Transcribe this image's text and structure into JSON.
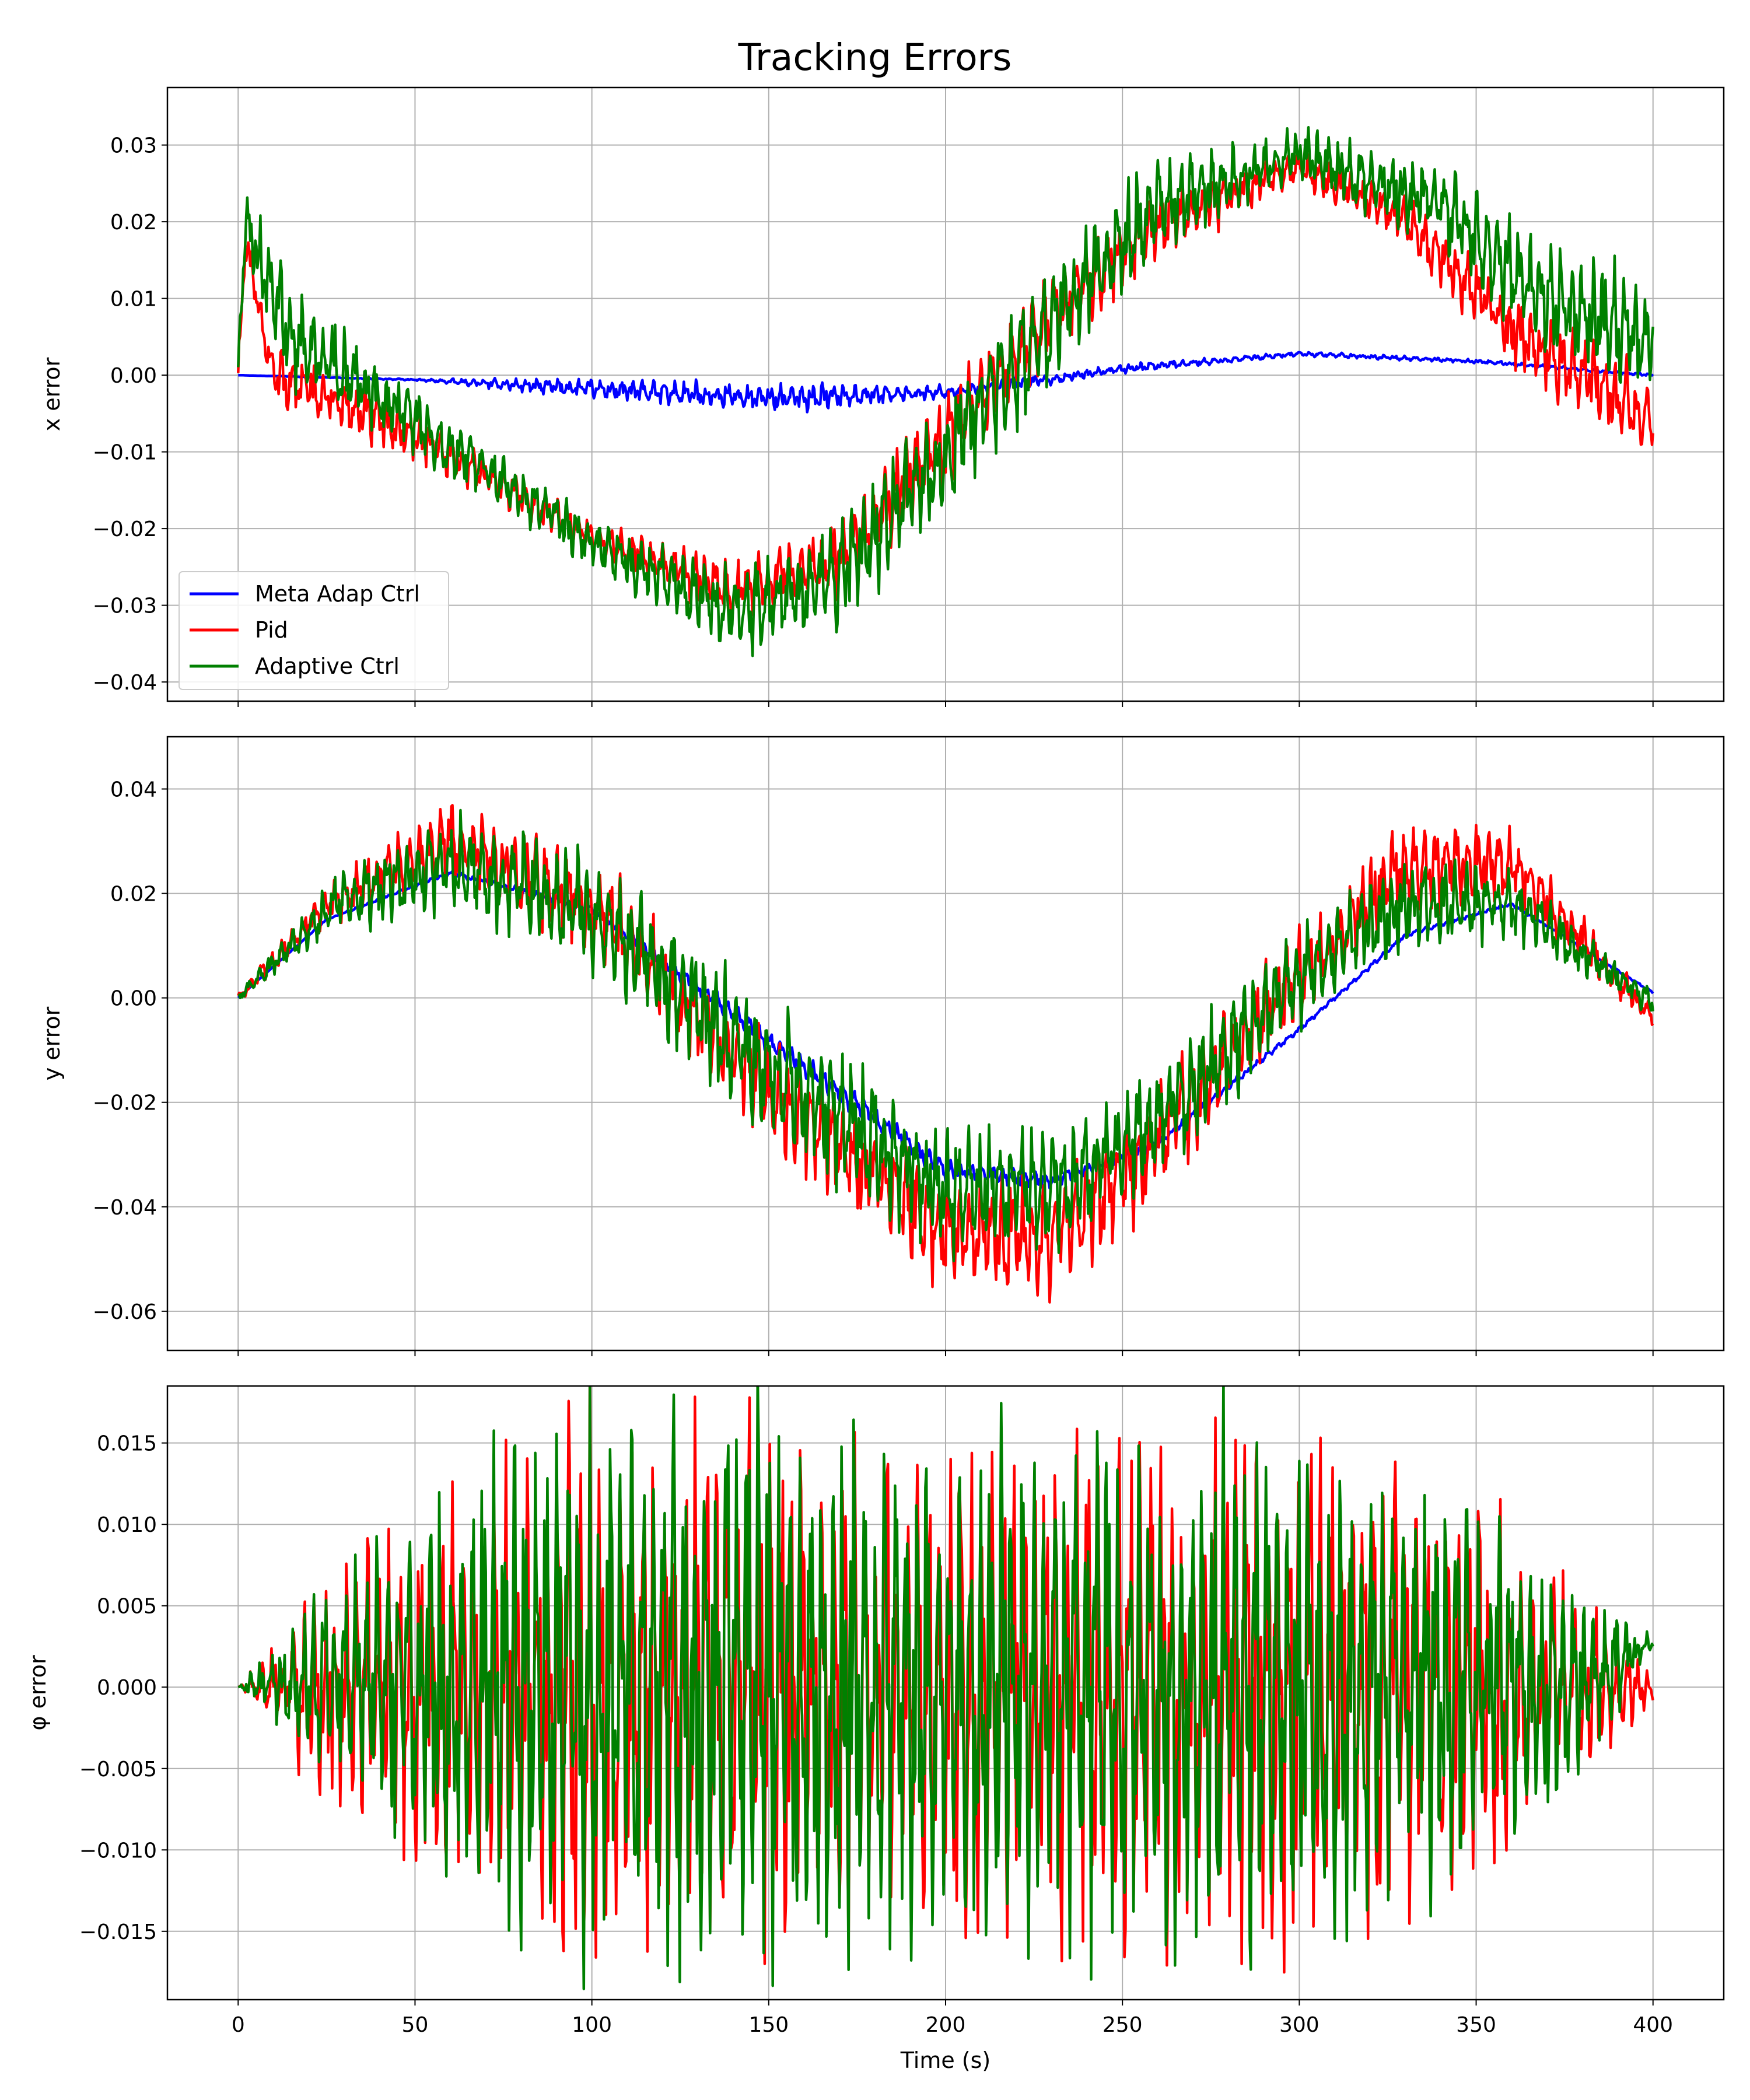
{
  "chart_data": {
    "type": "line",
    "title": "Tracking Errors",
    "xlabel": "Time (s)",
    "xlim": [
      -20,
      420
    ],
    "xticks": [
      0,
      50,
      100,
      150,
      200,
      250,
      300,
      350,
      400
    ],
    "grid": true,
    "legend": {
      "placement": "lower-left",
      "panel": 0,
      "entries": [
        "Meta Adap Ctrl",
        "Pid",
        "Adaptive Ctrl"
      ]
    },
    "colors": {
      "Meta Adap Ctrl": "#0000ff",
      "Pid": "#ff0000",
      "Adaptive Ctrl": "#008000"
    },
    "panels": [
      {
        "ylabel": "x error",
        "ylim": [
          -0.0425,
          0.0375
        ],
        "yticks": [
          -0.04,
          -0.03,
          -0.02,
          -0.01,
          0.0,
          0.01,
          0.02,
          0.03
        ],
        "yticklabels": [
          "−0.04",
          "−0.03",
          "−0.02",
          "−0.01",
          "0.00",
          "0.01",
          "0.02",
          "0.03"
        ],
        "series": [
          {
            "name": "Meta Adap Ctrl",
            "baseline": [
              [
                0,
                0.0
              ],
              [
                50,
                -0.0006
              ],
              [
                100,
                -0.0018
              ],
              [
                150,
                -0.003
              ],
              [
                200,
                -0.0022
              ],
              [
                225,
                -0.0008
              ],
              [
                250,
                0.0008
              ],
              [
                300,
                0.0028
              ],
              [
                350,
                0.0018
              ],
              [
                400,
                0.0
              ]
            ],
            "oscillation": [
              [
                0,
                0
              ],
              [
                50,
                0.0001
              ],
              [
                100,
                0.0012
              ],
              [
                150,
                0.0018
              ],
              [
                200,
                0.0008
              ],
              [
                250,
                0.0006
              ],
              [
                300,
                0.0003
              ],
              [
                400,
                0.0002
              ]
            ]
          },
          {
            "name": "Pid",
            "baseline": [
              [
                0,
                0.0
              ],
              [
                2,
                0.017
              ],
              [
                10,
                0.0
              ],
              [
                50,
                -0.008
              ],
              [
                100,
                -0.021
              ],
              [
                140,
                -0.028
              ],
              [
                170,
                -0.024
              ],
              [
                200,
                -0.008
              ],
              [
                230,
                0.008
              ],
              [
                260,
                0.02
              ],
              [
                300,
                0.027
              ],
              [
                330,
                0.02
              ],
              [
                360,
                0.006
              ],
              [
                400,
                -0.006
              ]
            ],
            "oscillation": [
              [
                0,
                0.002
              ],
              [
                10,
                0.004
              ],
              [
                50,
                0.003
              ],
              [
                100,
                0.002
              ],
              [
                150,
                0.004
              ],
              [
                200,
                0.006
              ],
              [
                250,
                0.005
              ],
              [
                300,
                0.002
              ],
              [
                350,
                0.004
              ],
              [
                400,
                0.006
              ]
            ]
          },
          {
            "name": "Adaptive Ctrl",
            "baseline": [
              [
                0,
                0.0
              ],
              [
                2,
                0.02
              ],
              [
                15,
                0.005
              ],
              [
                50,
                -0.006
              ],
              [
                100,
                -0.022
              ],
              [
                140,
                -0.031
              ],
              [
                170,
                -0.026
              ],
              [
                200,
                -0.01
              ],
              [
                230,
                0.007
              ],
              [
                260,
                0.022
              ],
              [
                300,
                0.029
              ],
              [
                340,
                0.022
              ],
              [
                370,
                0.01
              ],
              [
                400,
                0.004
              ]
            ],
            "oscillation": [
              [
                0,
                0.003
              ],
              [
                10,
                0.007
              ],
              [
                50,
                0.004
              ],
              [
                100,
                0.003
              ],
              [
                150,
                0.006
              ],
              [
                200,
                0.008
              ],
              [
                250,
                0.007
              ],
              [
                300,
                0.003
              ],
              [
                350,
                0.006
              ],
              [
                400,
                0.008
              ]
            ]
          }
        ]
      },
      {
        "ylabel": "y error",
        "ylim": [
          -0.0675,
          0.05
        ],
        "yticks": [
          -0.06,
          -0.04,
          -0.02,
          0.0,
          0.02,
          0.04
        ],
        "yticklabels": [
          "−0.06",
          "−0.04",
          "−0.02",
          "0.00",
          "0.02",
          "0.04"
        ],
        "series": [
          {
            "name": "Meta Adap Ctrl",
            "baseline": [
              [
                0,
                0.0
              ],
              [
                25,
                0.015
              ],
              [
                60,
                0.024
              ],
              [
                100,
                0.017
              ],
              [
                150,
                -0.008
              ],
              [
                200,
                -0.033
              ],
              [
                230,
                -0.035
              ],
              [
                260,
                -0.028
              ],
              [
                300,
                -0.006
              ],
              [
                330,
                0.012
              ],
              [
                360,
                0.018
              ],
              [
                400,
                0.001
              ]
            ],
            "oscillation": [
              [
                0,
                0
              ],
              [
                50,
                0.0003
              ],
              [
                100,
                0.001
              ],
              [
                150,
                0.002
              ],
              [
                200,
                0.002
              ],
              [
                250,
                0.001
              ],
              [
                300,
                0.0005
              ],
              [
                400,
                0.0002
              ]
            ]
          },
          {
            "name": "Pid",
            "baseline": [
              [
                0,
                0.0
              ],
              [
                25,
                0.018
              ],
              [
                60,
                0.03
              ],
              [
                100,
                0.018
              ],
              [
                150,
                -0.018
              ],
              [
                200,
                -0.045
              ],
              [
                230,
                -0.046
              ],
              [
                260,
                -0.028
              ],
              [
                300,
                0.005
              ],
              [
                330,
                0.025
              ],
              [
                360,
                0.026
              ],
              [
                400,
                -0.004
              ]
            ],
            "oscillation": [
              [
                0,
                0.001
              ],
              [
                25,
                0.004
              ],
              [
                60,
                0.007
              ],
              [
                100,
                0.009
              ],
              [
                150,
                0.01
              ],
              [
                200,
                0.01
              ],
              [
                250,
                0.01
              ],
              [
                300,
                0.009
              ],
              [
                350,
                0.008
              ],
              [
                400,
                0.002
              ]
            ]
          },
          {
            "name": "Adaptive Ctrl",
            "baseline": [
              [
                0,
                0.0
              ],
              [
                25,
                0.017
              ],
              [
                60,
                0.026
              ],
              [
                100,
                0.016
              ],
              [
                150,
                -0.014
              ],
              [
                200,
                -0.037
              ],
              [
                230,
                -0.037
              ],
              [
                260,
                -0.024
              ],
              [
                300,
                0.004
              ],
              [
                330,
                0.018
              ],
              [
                360,
                0.018
              ],
              [
                400,
                -0.001
              ]
            ],
            "oscillation": [
              [
                0,
                0.001
              ],
              [
                25,
                0.005
              ],
              [
                60,
                0.009
              ],
              [
                100,
                0.011
              ],
              [
                150,
                0.012
              ],
              [
                200,
                0.012
              ],
              [
                250,
                0.011
              ],
              [
                300,
                0.009
              ],
              [
                350,
                0.007
              ],
              [
                400,
                0.002
              ]
            ]
          }
        ]
      },
      {
        "ylabel": "φ error",
        "ylim": [
          -0.0192,
          0.0185
        ],
        "yticks": [
          -0.015,
          -0.01,
          -0.005,
          0.0,
          0.005,
          0.01,
          0.015
        ],
        "yticklabels": [
          "−0.015",
          "−0.010",
          "−0.005",
          "0.000",
          "0.005",
          "0.010",
          "0.015"
        ],
        "series": [
          {
            "name": "Pid",
            "baseline": [
              [
                0,
                0.0
              ],
              [
                400,
                0.0
              ]
            ],
            "oscillation": [
              [
                0,
                0
              ],
              [
                20,
                0.005
              ],
              [
                50,
                0.01
              ],
              [
                100,
                0.0155
              ],
              [
                150,
                0.0155
              ],
              [
                200,
                0.014
              ],
              [
                250,
                0.015
              ],
              [
                300,
                0.015
              ],
              [
                350,
                0.011
              ],
              [
                390,
                0.003
              ],
              [
                400,
                0.001
              ]
            ]
          },
          {
            "name": "Adaptive Ctrl",
            "baseline": [
              [
                0,
                0.0
              ],
              [
                380,
                0.0
              ],
              [
                400,
                0.0028
              ]
            ],
            "oscillation": [
              [
                0,
                0
              ],
              [
                20,
                0.005
              ],
              [
                50,
                0.0105
              ],
              [
                100,
                0.016
              ],
              [
                150,
                0.0165
              ],
              [
                200,
                0.0135
              ],
              [
                250,
                0.015
              ],
              [
                300,
                0.0155
              ],
              [
                350,
                0.011
              ],
              [
                390,
                0.003
              ],
              [
                400,
                0.0006
              ]
            ]
          }
        ]
      }
    ]
  }
}
